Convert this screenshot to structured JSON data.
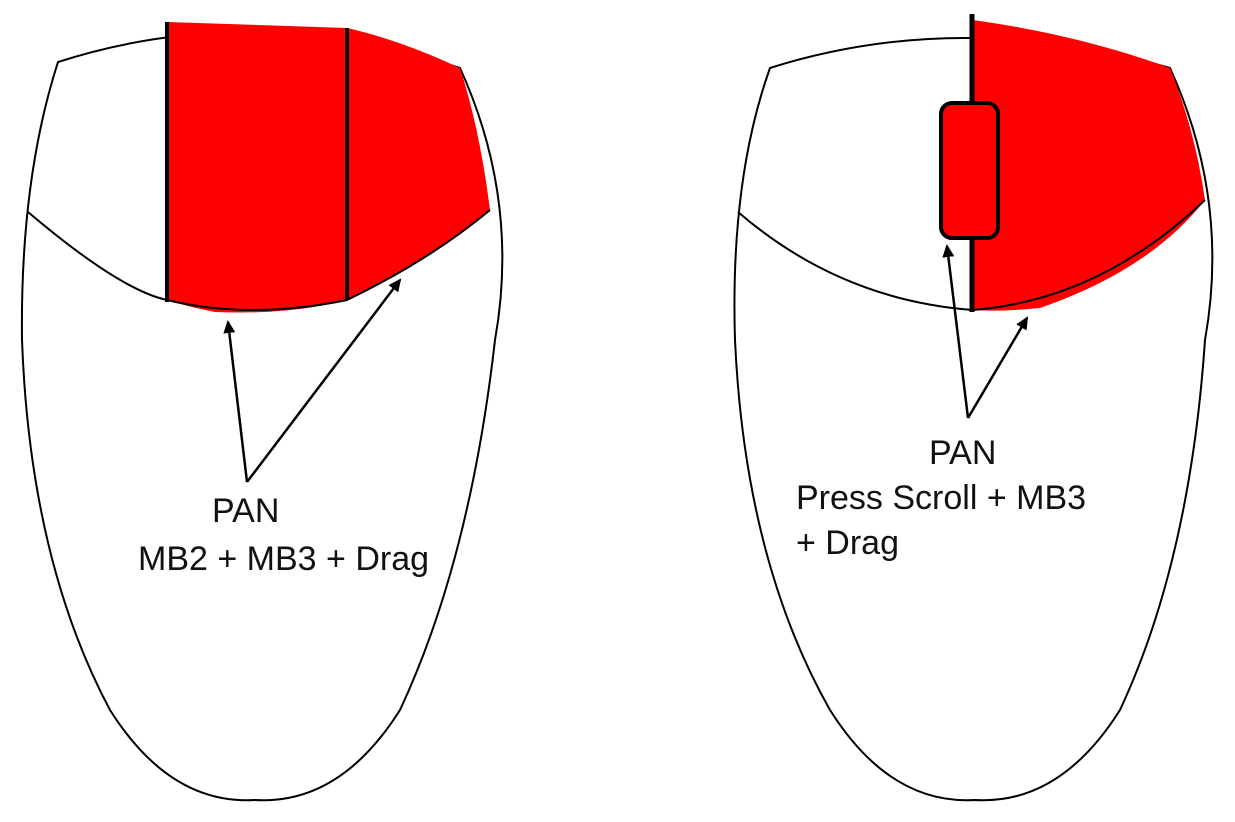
{
  "colors": {
    "outline": "#000000",
    "button_fill": "#ff0000",
    "background": "#ffffff",
    "text": "#111111"
  },
  "mouse_left": {
    "caption_line1": "PAN",
    "caption_line2": "MB2 + MB3 + Drag",
    "highlighted_buttons": [
      "middle-button",
      "right-button"
    ]
  },
  "mouse_right": {
    "caption_line1": "PAN",
    "caption_line2": "Press Scroll + MB3",
    "caption_line3": "+ Drag",
    "highlighted_buttons": [
      "scroll-wheel",
      "right-button"
    ]
  }
}
